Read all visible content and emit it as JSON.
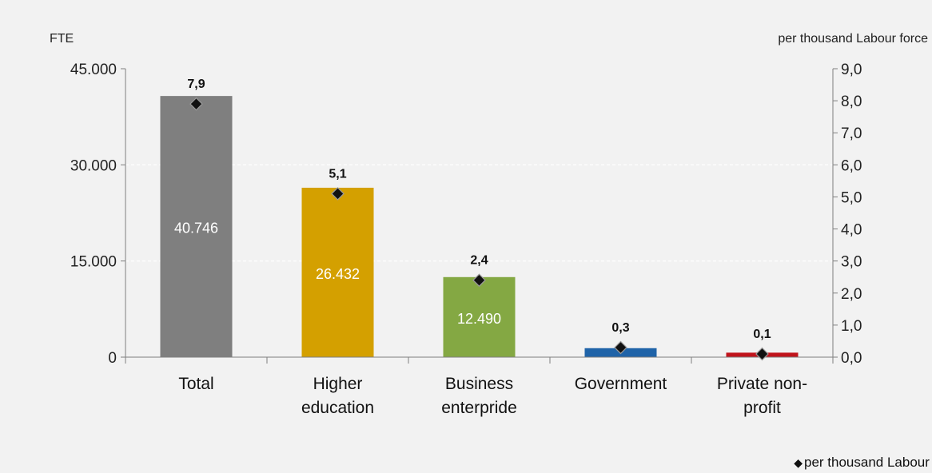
{
  "chart_data": {
    "type": "bar",
    "categories": [
      [
        "Total"
      ],
      [
        "Higher",
        "education"
      ],
      [
        "Business",
        "enterpride"
      ],
      [
        "Government"
      ],
      [
        "Private non-",
        "profit"
      ]
    ],
    "series": [
      {
        "axis": "left",
        "type": "bar",
        "values": [
          40746,
          26432,
          12490,
          1400,
          700
        ],
        "value_labels": [
          "40.746",
          "26.432",
          "12.490",
          "",
          ""
        ],
        "colors": [
          "#7f7f7f",
          "#d4a000",
          "#84a843",
          "#1f63a8",
          "#c0141c"
        ]
      },
      {
        "name": "per thousand Labour force",
        "axis": "right",
        "type": "scatter",
        "values": [
          7.9,
          5.1,
          2.4,
          0.3,
          0.1
        ],
        "value_labels": [
          "7,9",
          "5,1",
          "2,4",
          "0,3",
          "0,1"
        ],
        "color": "#111111"
      }
    ],
    "ylabel_left": "FTE",
    "ylabel_right": "per thousand Labour force",
    "ylim_left": [
      0,
      45000
    ],
    "ylim_right": [
      0,
      9
    ],
    "yticks_left": [
      "0",
      "15.000",
      "30.000",
      "45.000"
    ],
    "yticks_right": [
      "0,0",
      "1,0",
      "2,0",
      "3,0",
      "4,0",
      "5,0",
      "6,0",
      "7,0",
      "8,0",
      "9,0"
    ],
    "grid": true,
    "legend_position": "bottom-right",
    "legend_marker": "◆"
  }
}
